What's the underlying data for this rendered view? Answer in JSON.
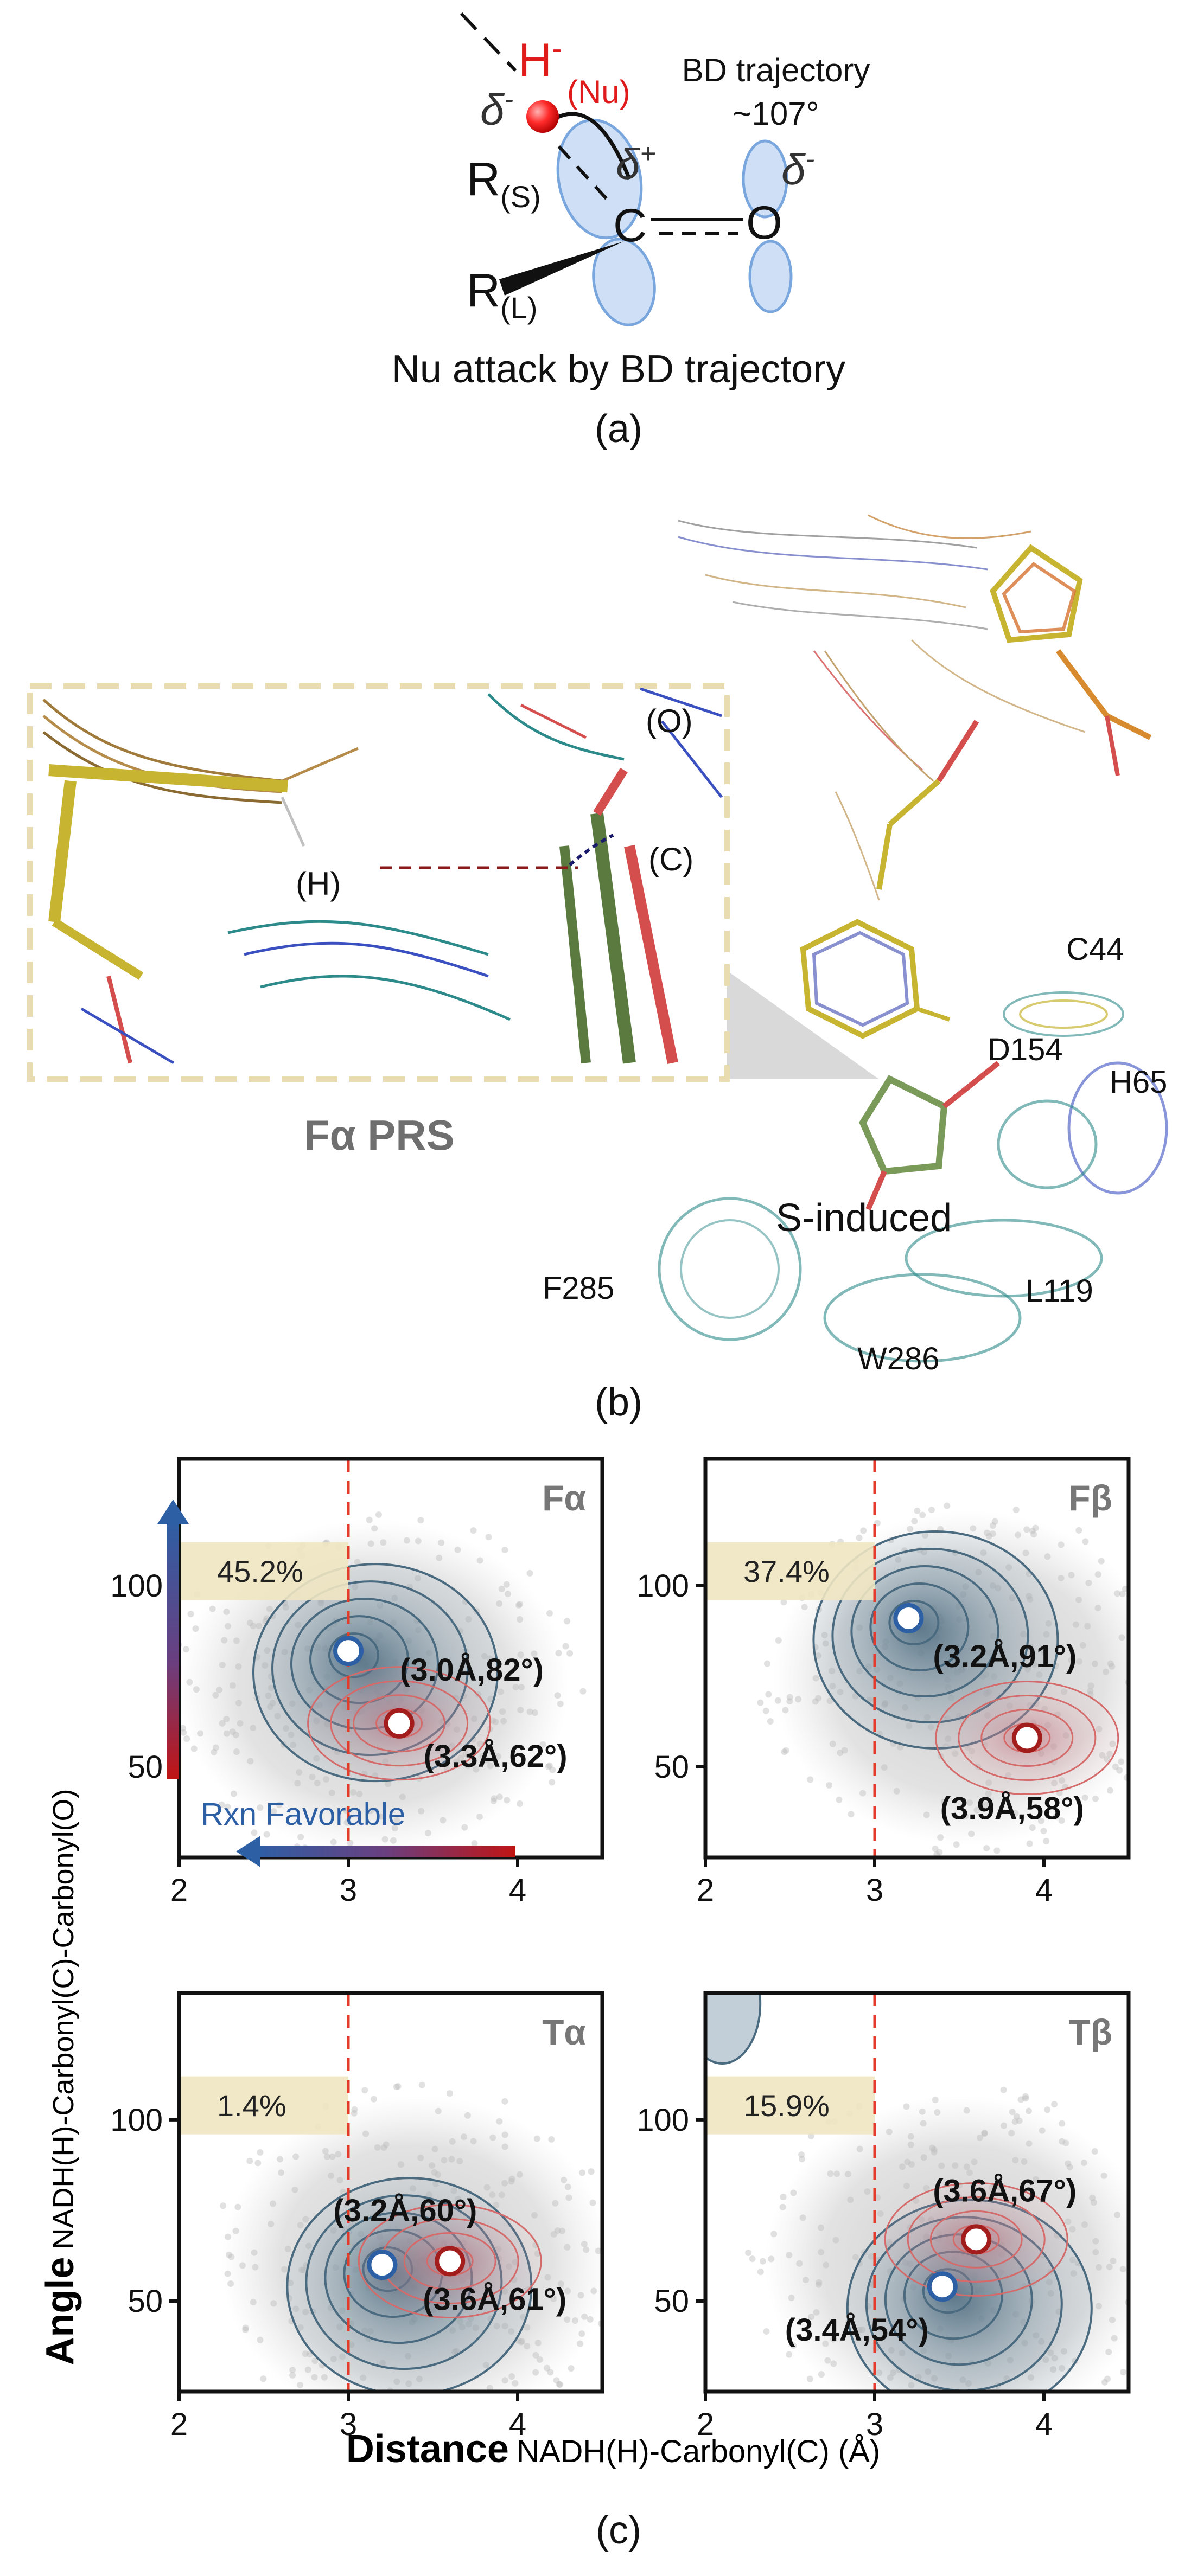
{
  "panel_a": {
    "nucleophile": "H",
    "charge_minus": "-",
    "nu_label": "(Nu)",
    "delta_minus_h": "δ",
    "delta_minus_h_sup": "-",
    "r_small": "R",
    "r_small_sub": "(S)",
    "r_large": "R",
    "r_large_sub": "(L)",
    "carbon": "C",
    "delta_plus": "δ",
    "delta_plus_sup": "+",
    "oxygen": "O",
    "delta_minus_o": "δ",
    "delta_minus_o_sup": "-",
    "trajectory_line1": "BD trajectory",
    "trajectory_line2": "~107°",
    "caption": "Nu attack by BD trajectory",
    "panel_label": "(a)"
  },
  "panel_b": {
    "inset_labels": {
      "h": "(H)",
      "c": "(C)",
      "o": "(O)"
    },
    "inset_title": "Fα PRS",
    "residues": [
      "C44",
      "D154",
      "H65",
      "L119",
      "F285",
      "W286"
    ],
    "state_label": "S-induced",
    "panel_label": "(b)"
  },
  "panel_c": {
    "panel_label": "(c)",
    "ylabel_main": "Angle",
    "ylabel_sub": "NADH(H)-Carbonyl(C)-Carbonyl(O)",
    "xlabel_main": "Distance",
    "xlabel_sub": "NADH(H)-Carbonyl(C) (Å)",
    "rxn_label": "Rxn Favorable",
    "colors": {
      "blue_state": "#2d5fa5",
      "red_state": "#a31d1d",
      "contour_dark": "#4a6a80",
      "contour_red": "#d46a6a",
      "threshold_band": "#efe5c2",
      "cutoff_line": "#e53b2c"
    }
  },
  "chart_data": [
    {
      "type": "scatter",
      "title": "Fα",
      "xlim": [
        2,
        4.5
      ],
      "ylim": [
        25,
        135
      ],
      "xticks": [
        2,
        3,
        4
      ],
      "yticks": [
        50,
        100
      ],
      "cutoff_x": 3,
      "fraction_label": "45.2%",
      "points": [
        {
          "state": "blue",
          "x": 3.0,
          "y": 82,
          "label": "(3.0Å,82°)"
        },
        {
          "state": "red",
          "x": 3.3,
          "y": 62,
          "label": "(3.3Å,62°)"
        }
      ]
    },
    {
      "type": "scatter",
      "title": "Fβ",
      "xlim": [
        2,
        4.5
      ],
      "ylim": [
        25,
        135
      ],
      "xticks": [
        2,
        3,
        4
      ],
      "yticks": [
        50,
        100
      ],
      "cutoff_x": 3,
      "fraction_label": "37.4%",
      "points": [
        {
          "state": "blue",
          "x": 3.2,
          "y": 91,
          "label": "(3.2Å,91°)"
        },
        {
          "state": "red",
          "x": 3.9,
          "y": 58,
          "label": "(3.9Å,58°)"
        }
      ]
    },
    {
      "type": "scatter",
      "title": "Tα",
      "xlim": [
        2,
        4.5
      ],
      "ylim": [
        25,
        135
      ],
      "xticks": [
        2,
        3,
        4
      ],
      "yticks": [
        50,
        100
      ],
      "cutoff_x": 3,
      "fraction_label": "1.4%",
      "points": [
        {
          "state": "blue",
          "x": 3.2,
          "y": 60,
          "label": "(3.2Å,60°)"
        },
        {
          "state": "red",
          "x": 3.6,
          "y": 61,
          "label": "(3.6Å,61°)"
        }
      ]
    },
    {
      "type": "scatter",
      "title": "Tβ",
      "xlim": [
        2,
        4.5
      ],
      "ylim": [
        25,
        135
      ],
      "xticks": [
        2,
        3,
        4
      ],
      "yticks": [
        50,
        100
      ],
      "cutoff_x": 3,
      "fraction_label": "15.9%",
      "points": [
        {
          "state": "blue",
          "x": 3.4,
          "y": 54,
          "label": "(3.4Å,54°)"
        },
        {
          "state": "red",
          "x": 3.6,
          "y": 67,
          "label": "(3.6Å,67°)"
        }
      ]
    }
  ]
}
